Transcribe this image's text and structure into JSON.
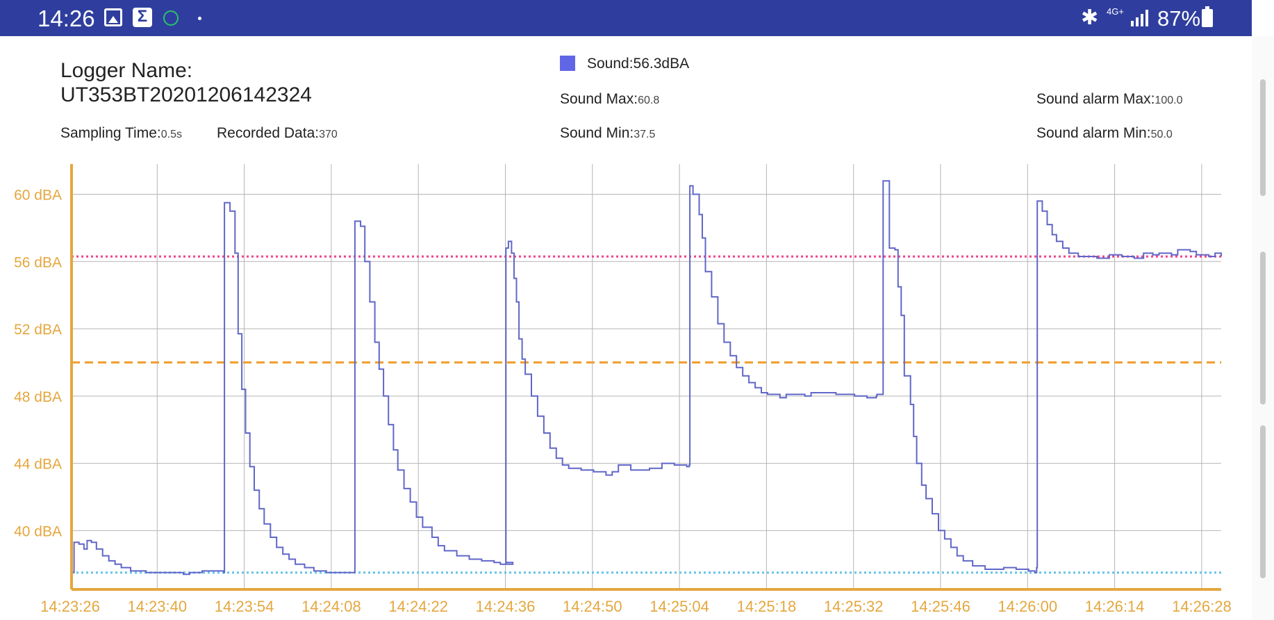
{
  "status_bar": {
    "time": "14:26",
    "network": "4G+",
    "battery": "87%",
    "icons": [
      "gallery-icon",
      "sigma-icon",
      "alarm-icon",
      "dot-icon",
      "bluetooth-icon",
      "signal-icon",
      "battery-icon"
    ]
  },
  "header": {
    "logger_label": "Logger Name:",
    "logger_name": "UT353BT20201206142324",
    "sampling_label": "Sampling Time:",
    "sampling_value": "0.5s",
    "recorded_label": "Recorded Data:",
    "recorded_value": "370",
    "legend_label": "Sound:56.3dBA",
    "max_label": "Sound Max:",
    "max_value": "60.8",
    "min_label": "Sound Min:",
    "min_value": "37.5",
    "alarm_max_label": "Sound alarm Max:",
    "alarm_max_value": "100.0",
    "alarm_min_label": "Sound alarm Min:",
    "alarm_min_value": "50.0"
  },
  "colors": {
    "series": "#6066c8",
    "axis": "#e4a73e",
    "grid": "#b5b5b5",
    "line_pink": "#f0468c",
    "line_orange": "#f0a030",
    "line_blue": "#66c4ea"
  },
  "chart_data": {
    "type": "line",
    "x_tick_labels": [
      "14:23:26",
      "14:23:40",
      "14:23:54",
      "14:24:08",
      "14:24:22",
      "14:24:36",
      "14:24:50",
      "14:25:04",
      "14:25:18",
      "14:25:32",
      "14:25:46",
      "14:26:00",
      "14:26:14",
      "14:26:28"
    ],
    "y_tick_labels": [
      "40 dBA",
      "44 dBA",
      "48 dBA",
      "52 dBA",
      "56 dBA",
      "60 dBA"
    ],
    "y_ticks": [
      40,
      44,
      48,
      52,
      56,
      60
    ],
    "xlim_seconds": [
      0,
      185
    ],
    "ylim": [
      36.5,
      61.8
    ],
    "grid": true,
    "reference_lines": [
      {
        "value": 56.3,
        "style": "dotted",
        "color": "#f0468c"
      },
      {
        "value": 50.0,
        "style": "dashed",
        "color": "#f0a030"
      },
      {
        "value": 37.5,
        "style": "dotted",
        "color": "#66c4ea"
      }
    ],
    "series": [
      {
        "points": [
          [
            0,
            37.5
          ],
          [
            0.4,
            39.3
          ],
          [
            1.2,
            39.2
          ],
          [
            2,
            38.9
          ],
          [
            2.5,
            39.4
          ],
          [
            3.2,
            39.3
          ],
          [
            4,
            38.9
          ],
          [
            5,
            38.5
          ],
          [
            6,
            38.2
          ],
          [
            7,
            38.0
          ],
          [
            8,
            37.8
          ],
          [
            9.5,
            37.6
          ],
          [
            12,
            37.5
          ],
          [
            17,
            37.5
          ],
          [
            18,
            37.4
          ],
          [
            19,
            37.5
          ],
          [
            21,
            37.6
          ],
          [
            24.5,
            37.5
          ],
          [
            24.6,
            59.5
          ],
          [
            25.5,
            59.0
          ],
          [
            26.3,
            56.5
          ],
          [
            26.8,
            51.7
          ],
          [
            27.4,
            48.4
          ],
          [
            28,
            45.8
          ],
          [
            28.7,
            43.8
          ],
          [
            29.4,
            42.4
          ],
          [
            30.2,
            41.3
          ],
          [
            31,
            40.4
          ],
          [
            32,
            39.6
          ],
          [
            33,
            39.0
          ],
          [
            34,
            38.6
          ],
          [
            35,
            38.3
          ],
          [
            36,
            38.0
          ],
          [
            37.5,
            37.8
          ],
          [
            39,
            37.6
          ],
          [
            41,
            37.5
          ],
          [
            45.5,
            37.5
          ],
          [
            45.6,
            58.4
          ],
          [
            46.5,
            58.1
          ],
          [
            47.2,
            56.0
          ],
          [
            48,
            53.6
          ],
          [
            48.8,
            51.2
          ],
          [
            49.5,
            49.6
          ],
          [
            50.2,
            48.0
          ],
          [
            51,
            46.3
          ],
          [
            51.8,
            44.8
          ],
          [
            52.5,
            43.6
          ],
          [
            53.5,
            42.5
          ],
          [
            54.5,
            41.7
          ],
          [
            55.5,
            40.8
          ],
          [
            56.5,
            40.2
          ],
          [
            58,
            39.6
          ],
          [
            59,
            39.1
          ],
          [
            60,
            38.8
          ],
          [
            62,
            38.5
          ],
          [
            64,
            38.3
          ],
          [
            66,
            38.2
          ],
          [
            68,
            38.1
          ],
          [
            69,
            38.0
          ],
          [
            71,
            38.1
          ],
          [
            69.8,
            38.1
          ],
          [
            69.9,
            38.0
          ],
          [
            69.9,
            38.0
          ],
          [
            69.9,
            56.8
          ],
          [
            70.3,
            57.2
          ],
          [
            70.8,
            56.5
          ],
          [
            71.2,
            55.0
          ],
          [
            71.6,
            53.6
          ],
          [
            72,
            51.4
          ],
          [
            72.5,
            50.2
          ],
          [
            73,
            49.3
          ],
          [
            74,
            48.0
          ],
          [
            75,
            46.8
          ],
          [
            76,
            45.8
          ],
          [
            77,
            44.9
          ],
          [
            78,
            44.3
          ],
          [
            79,
            43.9
          ],
          [
            80,
            43.7
          ],
          [
            82,
            43.6
          ],
          [
            84,
            43.5
          ],
          [
            86,
            43.3
          ],
          [
            87,
            43.5
          ],
          [
            88,
            43.9
          ],
          [
            90,
            43.6
          ],
          [
            93,
            43.7
          ],
          [
            95,
            44.0
          ],
          [
            97,
            43.9
          ],
          [
            99,
            43.8
          ],
          [
            99.4,
            43.9
          ],
          [
            99.5,
            60.5
          ],
          [
            100,
            60.0
          ],
          [
            101,
            58.8
          ],
          [
            101.5,
            57.4
          ],
          [
            102,
            55.4
          ],
          [
            103,
            53.9
          ],
          [
            104,
            52.3
          ],
          [
            105,
            51.2
          ],
          [
            106,
            50.4
          ],
          [
            107,
            49.7
          ],
          [
            108,
            49.2
          ],
          [
            109,
            48.8
          ],
          [
            110,
            48.5
          ],
          [
            111,
            48.2
          ],
          [
            112,
            48.1
          ],
          [
            114,
            47.9
          ],
          [
            115,
            48.1
          ],
          [
            118,
            48.0
          ],
          [
            119,
            48.2
          ],
          [
            123,
            48.1
          ],
          [
            126,
            48.0
          ],
          [
            128,
            47.9
          ],
          [
            129.5,
            48.0
          ],
          [
            129.6,
            48.1
          ],
          [
            130.5,
            48.1
          ],
          [
            130.6,
            60.8
          ],
          [
            131.5,
            60.8
          ],
          [
            131.6,
            56.8
          ],
          [
            132.5,
            56.7
          ],
          [
            133,
            54.5
          ],
          [
            133.5,
            52.8
          ],
          [
            134,
            49.2
          ],
          [
            135,
            47.5
          ],
          [
            135.5,
            45.6
          ],
          [
            136,
            44.0
          ],
          [
            136.8,
            42.7
          ],
          [
            137.5,
            41.9
          ],
          [
            138.5,
            41.0
          ],
          [
            139.5,
            40.0
          ],
          [
            140.5,
            39.5
          ],
          [
            141.5,
            39.0
          ],
          [
            142.5,
            38.5
          ],
          [
            143.5,
            38.2
          ],
          [
            145,
            37.9
          ],
          [
            147,
            37.7
          ],
          [
            150,
            37.8
          ],
          [
            152,
            37.7
          ],
          [
            154,
            37.6
          ],
          [
            155,
            37.5
          ],
          [
            155.3,
            37.8
          ],
          [
            155.4,
            59.6
          ],
          [
            156.2,
            59.0
          ],
          [
            157,
            58.2
          ],
          [
            157.8,
            57.6
          ],
          [
            158.5,
            57.2
          ],
          [
            159.5,
            56.8
          ],
          [
            160.5,
            56.5
          ],
          [
            162,
            56.3
          ],
          [
            164,
            56.3
          ],
          [
            165,
            56.2
          ],
          [
            167,
            56.4
          ],
          [
            169,
            56.3
          ],
          [
            171,
            56.2
          ],
          [
            172,
            56.2
          ],
          [
            172.5,
            56.5
          ],
          [
            174,
            56.4
          ],
          [
            175,
            56.5
          ],
          [
            177,
            56.4
          ],
          [
            178,
            56.7
          ],
          [
            180,
            56.6
          ],
          [
            181,
            56.4
          ],
          [
            183,
            56.3
          ],
          [
            184,
            56.5
          ],
          [
            185,
            56.3
          ]
        ]
      }
    ]
  }
}
